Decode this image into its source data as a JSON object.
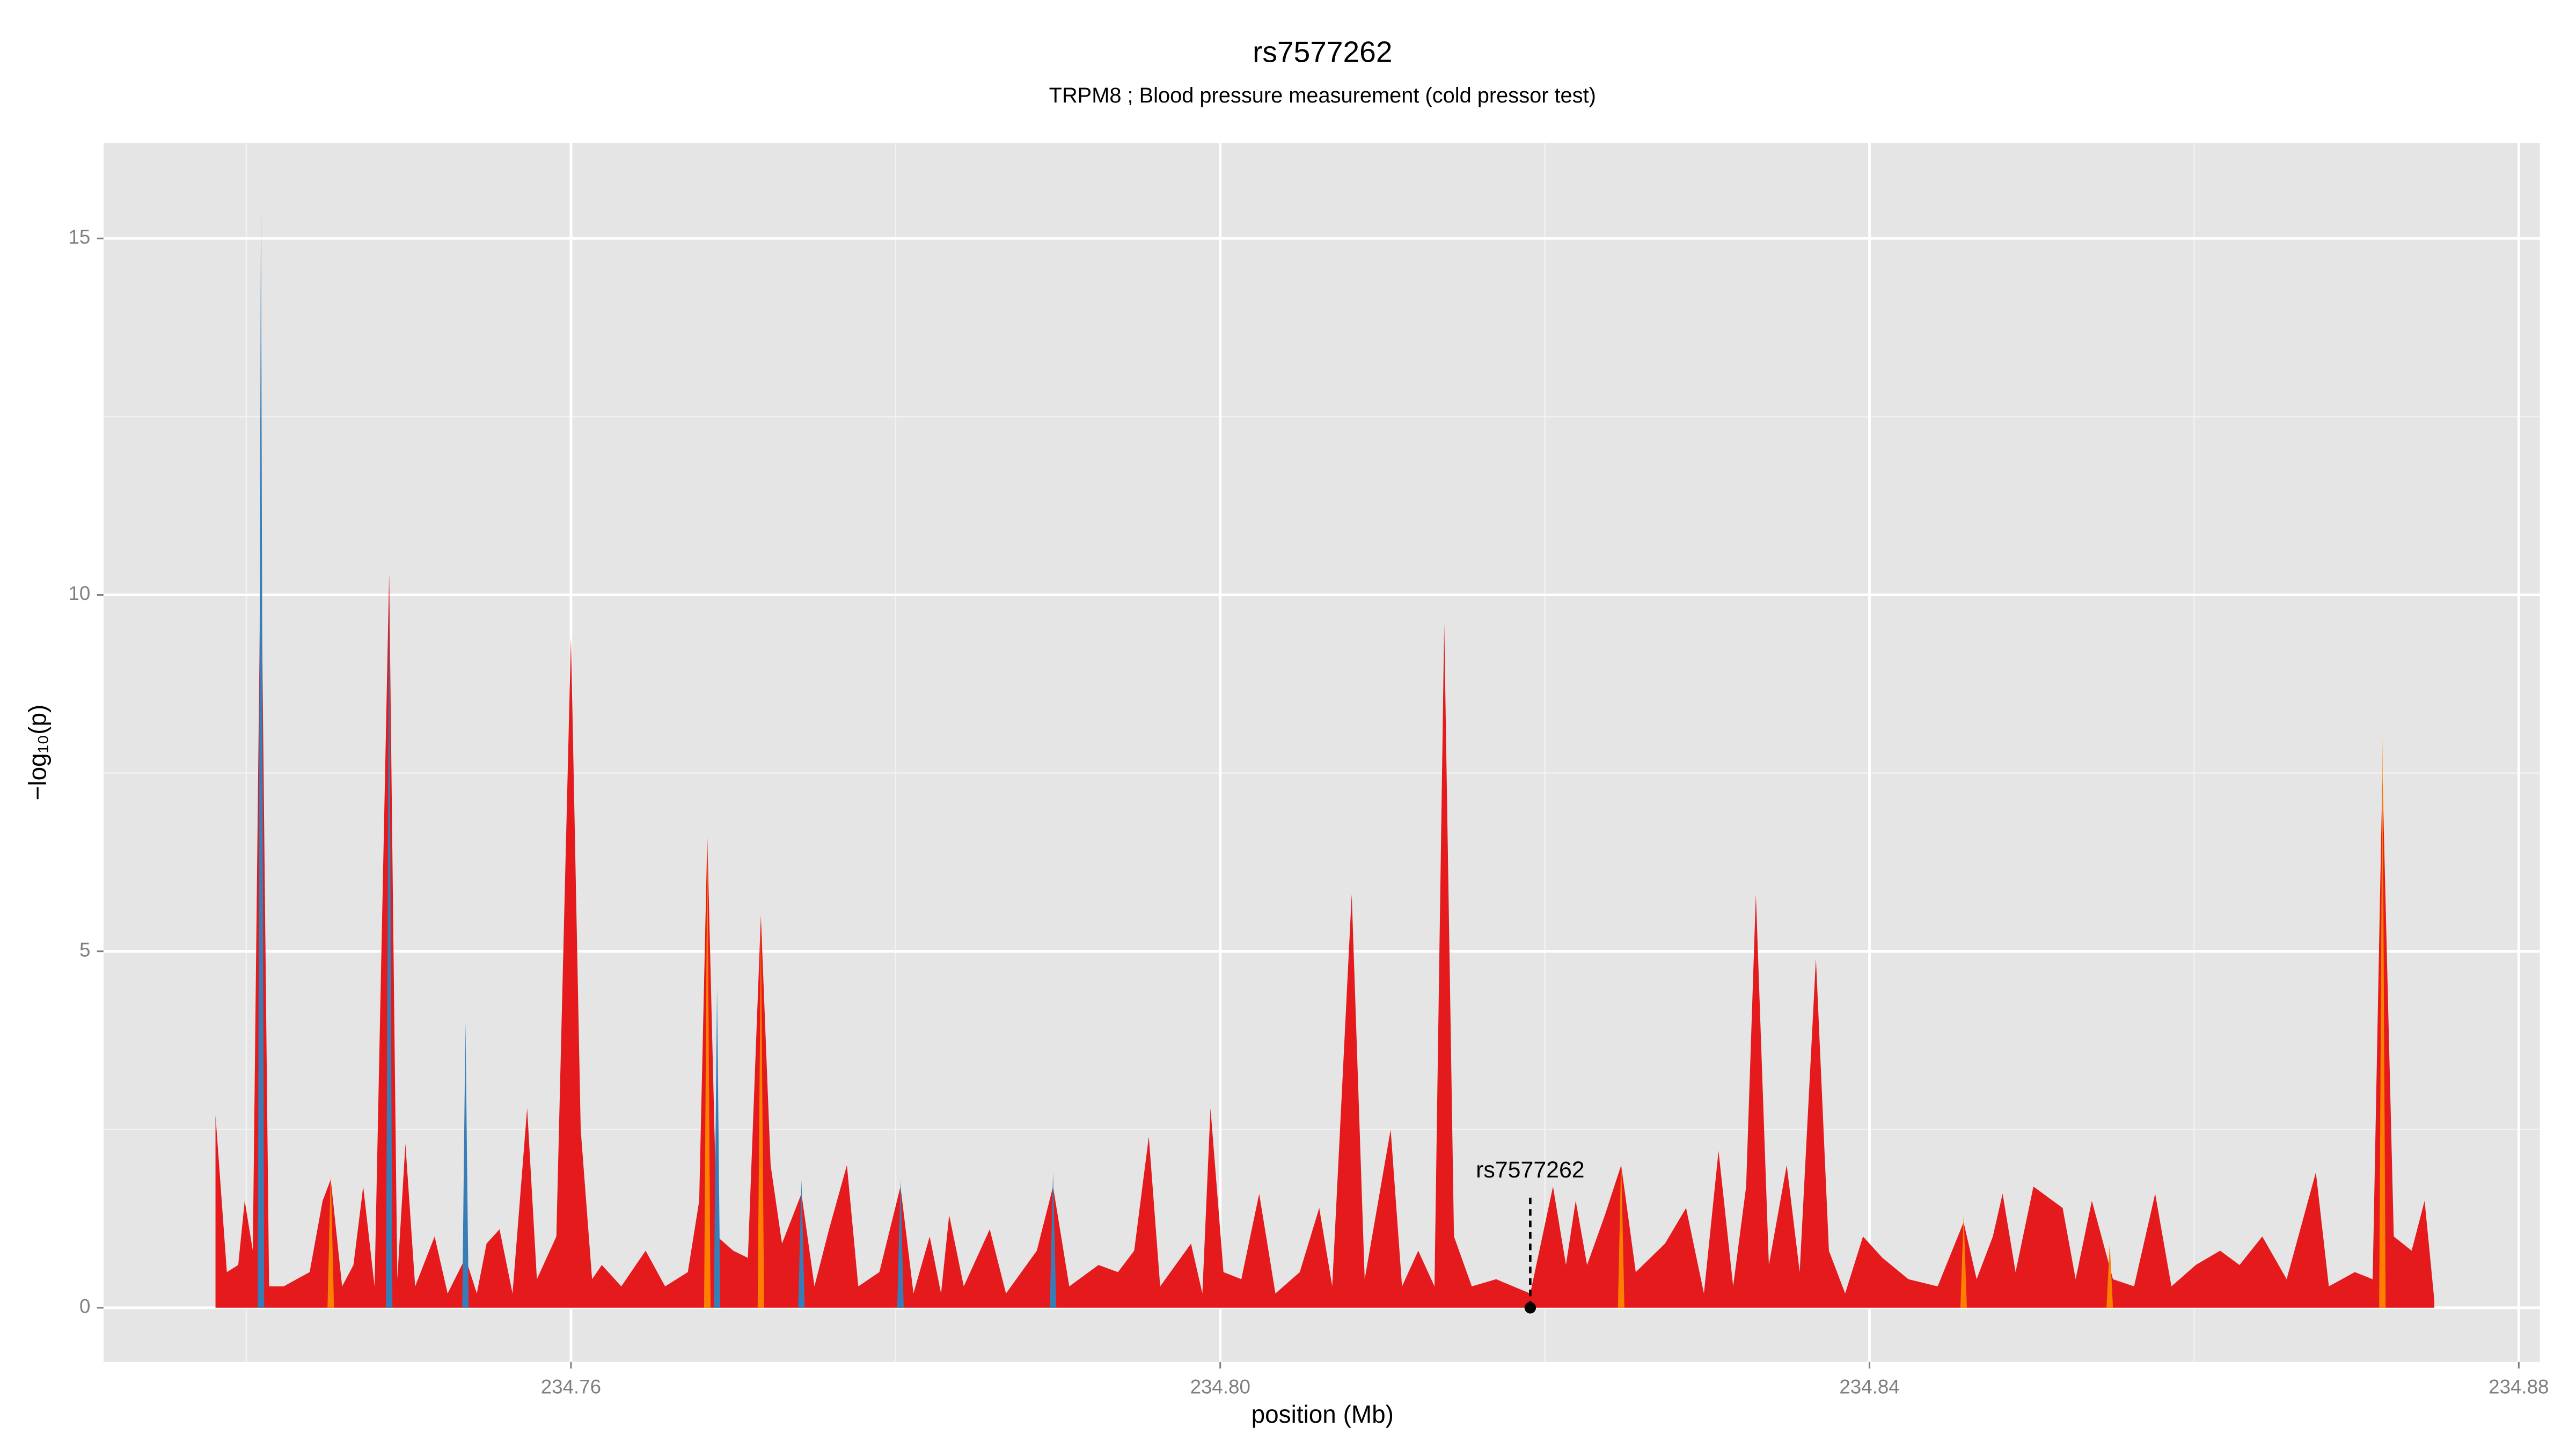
{
  "chart_data": {
    "type": "area",
    "title": "rs7577262",
    "subtitle": "TRPM8 ; Blood pressure measurement (cold pressor test)",
    "x_label": "position (Mb)",
    "y_label": "−log₁₀(p)",
    "xlim": [
      234.7312,
      234.8813
    ],
    "ylim": [
      -0.76,
      16.34
    ],
    "xticks": [
      234.76,
      {
        "value": 234.8,
        "label": "234.80"
      },
      234.84,
      234.88
    ],
    "yticks": [
      0,
      5,
      10,
      15
    ],
    "grid": true,
    "series": [
      {
        "color": "#e41a1c",
        "x": [
          234.7381,
          234.7388,
          234.7395,
          234.7399,
          234.7404,
          234.7409,
          234.7414,
          234.7423,
          234.7431,
          234.7439,
          234.7447,
          234.7452,
          234.7459,
          234.7466,
          234.7472,
          234.7479,
          234.7488,
          234.7493,
          234.7498,
          234.7504,
          234.7516,
          234.7524,
          234.7535,
          234.7542,
          234.7548,
          234.7556,
          234.7564,
          234.7573,
          234.7579,
          234.7591,
          234.76,
          234.7606,
          234.7613,
          234.7619,
          234.7631,
          234.7646,
          234.7658,
          234.7672,
          234.7679,
          234.7684,
          234.769,
          234.77,
          234.7709,
          234.7717,
          234.7723,
          234.773,
          234.7742,
          234.775,
          234.7759,
          234.777,
          234.7777,
          234.779,
          234.7803,
          234.7811,
          234.7821,
          234.7828,
          234.7833,
          234.7842,
          234.7858,
          234.7868,
          234.7887,
          234.7897,
          234.7907,
          234.7925,
          234.7937,
          234.7947,
          234.7956,
          234.7963,
          234.7982,
          234.7989,
          234.7994,
          234.8002,
          234.8013,
          234.8024,
          234.8034,
          234.8049,
          234.8061,
          234.8069,
          234.8081,
          234.8089,
          234.8105,
          234.8112,
          234.8122,
          234.8132,
          234.8138,
          234.8144,
          234.8155,
          234.817,
          234.8191,
          234.8205,
          234.8213,
          234.8219,
          234.8226,
          234.8237,
          234.8247,
          234.8256,
          234.8274,
          234.8287,
          234.8298,
          234.8307,
          234.8316,
          234.8324,
          234.833,
          234.8338,
          234.8349,
          234.8357,
          234.8367,
          234.8375,
          234.8385,
          234.8396,
          234.8408,
          234.8424,
          234.8442,
          234.8458,
          234.8466,
          234.8476,
          234.8482,
          234.849,
          234.8501,
          234.8519,
          234.8527,
          234.8537,
          234.855,
          234.8563,
          234.8576,
          234.8586,
          234.8601,
          234.8616,
          234.8628,
          234.8642,
          234.8657,
          234.8675,
          234.8683,
          234.8699,
          234.871,
          234.8716,
          234.8723,
          234.8734,
          234.8742,
          234.8748
        ],
        "values": [
          2.7,
          0.5,
          0.6,
          1.5,
          0.8,
          11.0,
          0.3,
          0.3,
          0.4,
          0.5,
          1.5,
          1.8,
          0.3,
          0.6,
          1.7,
          0.3,
          10.3,
          0.4,
          2.3,
          0.3,
          1.0,
          0.2,
          0.7,
          0.2,
          0.9,
          1.1,
          0.2,
          2.8,
          0.4,
          1.0,
          9.4,
          2.5,
          0.4,
          0.6,
          0.3,
          0.8,
          0.3,
          0.5,
          1.5,
          6.6,
          1.0,
          0.8,
          0.7,
          5.5,
          2.0,
          0.9,
          1.6,
          0.3,
          1.1,
          2.0,
          0.3,
          0.5,
          1.7,
          0.2,
          1.0,
          0.2,
          1.3,
          0.3,
          1.1,
          0.2,
          0.8,
          1.7,
          0.3,
          0.6,
          0.5,
          0.8,
          2.4,
          0.3,
          0.9,
          0.2,
          2.8,
          0.5,
          0.4,
          1.6,
          0.2,
          0.5,
          1.4,
          0.3,
          5.8,
          0.4,
          2.5,
          0.3,
          0.8,
          0.3,
          9.6,
          1.0,
          0.3,
          0.4,
          0.2,
          1.7,
          0.6,
          1.5,
          0.6,
          1.3,
          2.0,
          0.5,
          0.9,
          1.4,
          0.2,
          2.2,
          0.3,
          1.7,
          5.8,
          0.6,
          2.0,
          0.5,
          4.9,
          0.8,
          0.2,
          1.0,
          0.7,
          0.4,
          0.3,
          1.2,
          0.4,
          1.0,
          1.6,
          0.5,
          1.7,
          1.4,
          0.4,
          1.5,
          0.4,
          0.3,
          1.6,
          0.3,
          0.6,
          0.8,
          0.6,
          1.0,
          0.4,
          1.9,
          0.3,
          0.5,
          0.4,
          7.5,
          1.0,
          0.8,
          1.5,
          0.1
        ]
      },
      {
        "color": "#377eb8",
        "x": [
          234.7407,
          234.7409,
          234.7411,
          234.741,
          234.7486,
          234.7488,
          234.749,
          234.75,
          234.7533,
          234.7535,
          234.7537,
          234.76,
          234.7688,
          234.769,
          234.7692,
          234.77,
          234.774,
          234.7742,
          234.7744,
          234.775,
          234.7801,
          234.7803,
          234.7805,
          234.785,
          234.7895,
          234.7897,
          234.7899
        ],
        "values": [
          0,
          15.5,
          0,
          null,
          0,
          10.0,
          0,
          null,
          0,
          4.0,
          0,
          null,
          0,
          4.5,
          0,
          null,
          0,
          1.8,
          0,
          null,
          0,
          1.8,
          0,
          null,
          0,
          1.9,
          0
        ]
      },
      {
        "color": "#ff7f00",
        "x": [
          234.745,
          234.7452,
          234.7454,
          234.746,
          234.7682,
          234.7684,
          234.7686,
          234.77,
          234.7715,
          234.7717,
          234.7719,
          234.78,
          234.8245,
          234.8247,
          234.8249,
          234.83,
          234.8456,
          234.8458,
          234.846,
          234.85,
          234.8546,
          234.8548,
          234.855,
          234.86,
          234.8714,
          234.8716,
          234.8718
        ],
        "values": [
          0,
          1.9,
          0,
          null,
          0,
          6.6,
          0,
          null,
          0,
          5.3,
          0,
          null,
          0,
          2.1,
          0,
          null,
          0,
          1.3,
          0,
          null,
          0,
          0.9,
          0,
          null,
          0,
          8.0,
          0
        ]
      }
    ],
    "annotation": {
      "text": "rs7577262",
      "x": 234.8191,
      "y": 0
    }
  }
}
